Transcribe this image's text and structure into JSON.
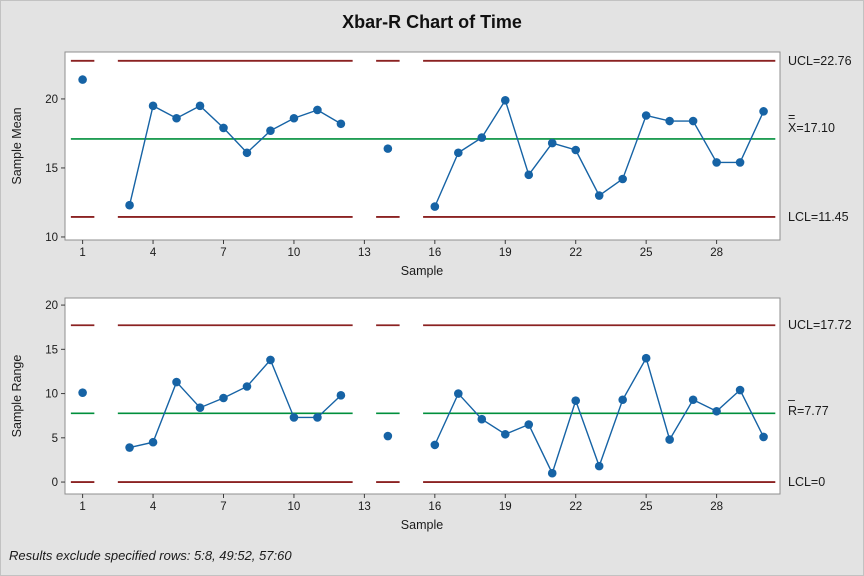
{
  "title": "Xbar-R Chart of Time",
  "footer": "Results exclude specified rows: 5:8, 49:52, 57:60",
  "colors": {
    "series": "#1663a5",
    "limit": "#8b2222",
    "center": "#008f3c",
    "plot_border": "#8f8f8f",
    "tick": "#3c3c3c",
    "text": "#1b1b1b",
    "plot_background": "#ffffff",
    "page_background": "#e3e3e3"
  },
  "chart_data": [
    {
      "type": "line",
      "name": "xbar",
      "panel_title": "Sample Mean panel",
      "ylabel": "Sample Mean",
      "xlabel": "Sample",
      "x": [
        1,
        2,
        3,
        4,
        5,
        6,
        7,
        8,
        9,
        10,
        11,
        12,
        13,
        14,
        15,
        16,
        17,
        18,
        19,
        20,
        21,
        22,
        23,
        24,
        25,
        26,
        27,
        28,
        29,
        30
      ],
      "values": [
        21.4,
        null,
        12.3,
        19.5,
        18.6,
        19.5,
        17.9,
        16.1,
        17.7,
        18.6,
        19.2,
        18.2,
        null,
        16.4,
        null,
        12.2,
        16.1,
        17.2,
        19.9,
        14.5,
        16.8,
        16.3,
        13.0,
        14.2,
        18.8,
        18.4,
        18.4,
        15.4,
        15.4,
        19.1
      ],
      "excluded_samples": [
        2,
        13,
        15
      ],
      "ucl": 22.76,
      "center": 17.1,
      "lcl": 11.45,
      "limit_labels": {
        "ucl": "UCL=22.76",
        "cl_bar": "=",
        "cl": "X=17.10",
        "lcl": "LCL=11.45"
      },
      "yticks": [
        10,
        15,
        20
      ],
      "xticks": [
        1,
        4,
        7,
        10,
        13,
        16,
        19,
        22,
        25,
        28
      ],
      "ylim": [
        9.78,
        23.4
      ],
      "xlim": [
        0.25,
        30.7
      ],
      "grid": false,
      "legend": false,
      "center_line_continuous": true
    },
    {
      "type": "line",
      "name": "range",
      "panel_title": "Sample Range panel",
      "ylabel": "Sample Range",
      "xlabel": "Sample",
      "x": [
        1,
        2,
        3,
        4,
        5,
        6,
        7,
        8,
        9,
        10,
        11,
        12,
        13,
        14,
        15,
        16,
        17,
        18,
        19,
        20,
        21,
        22,
        23,
        24,
        25,
        26,
        27,
        28,
        29,
        30
      ],
      "values": [
        10.1,
        null,
        3.9,
        4.5,
        11.3,
        8.4,
        9.5,
        10.8,
        13.8,
        7.3,
        7.3,
        9.8,
        null,
        5.2,
        null,
        4.2,
        10.0,
        7.1,
        5.4,
        6.5,
        1.0,
        9.2,
        1.8,
        9.3,
        14.0,
        4.8,
        9.3,
        8.0,
        10.4,
        5.1
      ],
      "excluded_samples": [
        2,
        13,
        15
      ],
      "ucl": 17.72,
      "center": 7.77,
      "lcl": 0,
      "limit_labels": {
        "ucl": "UCL=17.72",
        "cl_bar": "–",
        "cl": "R=7.77",
        "lcl": "LCL=0"
      },
      "yticks": [
        0,
        5,
        10,
        15,
        20
      ],
      "xticks": [
        1,
        4,
        7,
        10,
        13,
        16,
        19,
        22,
        25,
        28
      ],
      "ylim": [
        -1.35,
        20.8
      ],
      "xlim": [
        0.25,
        30.7
      ],
      "grid": false,
      "legend": false,
      "center_line_continuous": false
    }
  ]
}
